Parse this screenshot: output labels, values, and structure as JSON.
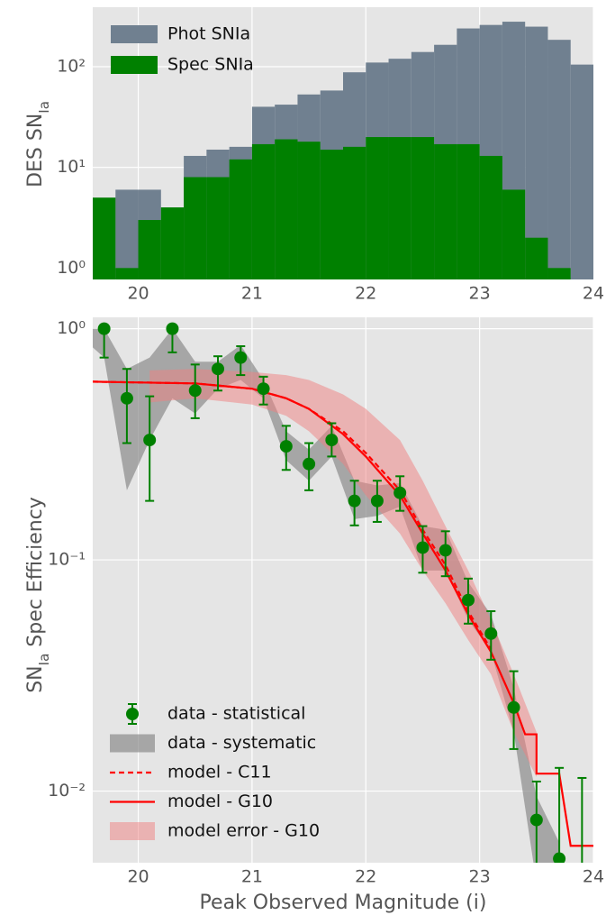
{
  "chart_data": [
    {
      "type": "histogram",
      "log_y": true,
      "grid": true,
      "legend": "upper left",
      "ylabel": {
        "main": "DES SN",
        "sub": "Ia"
      },
      "bins": [
        19.6,
        19.8,
        20.0,
        20.2,
        20.4,
        20.6,
        20.8,
        21.0,
        21.2,
        21.4,
        21.6,
        21.8,
        22.0,
        22.2,
        22.4,
        22.6,
        22.8,
        23.0,
        23.2,
        23.4,
        23.6,
        23.8,
        24.0
      ],
      "series": [
        {
          "name": "Phot SNIa",
          "color": "#708090",
          "values": [
            5,
            6,
            6,
            4,
            13,
            15,
            16,
            40,
            42,
            53,
            58,
            88,
            110,
            120,
            140,
            165,
            240,
            260,
            280,
            250,
            185,
            105
          ]
        },
        {
          "name": "Spec SNIa",
          "color": "#008000",
          "values": [
            5,
            1,
            3,
            4,
            8,
            8,
            12,
            17,
            19,
            18,
            15,
            16,
            20,
            20,
            20,
            17,
            17,
            13,
            6,
            2,
            1,
            null
          ]
        }
      ],
      "xlim": [
        19.6,
        24
      ],
      "xticks": [
        20,
        21,
        22,
        23,
        24
      ],
      "ylim": [
        0.77,
        390
      ],
      "yticks": [
        {
          "value": 1,
          "label": "10⁰"
        },
        {
          "value": 10,
          "label": "10¹"
        },
        {
          "value": 100,
          "label": "10²"
        }
      ]
    },
    {
      "type": "composite",
      "log_y": true,
      "grid": true,
      "legend": "lower left",
      "xlabel": "Peak Observed Magnitude (i)",
      "ylabel": {
        "pre": "SN",
        "sub": "Ia",
        "post": " Spec Efficiency"
      },
      "xlim": [
        19.6,
        24
      ],
      "xticks": [
        20,
        21,
        22,
        23,
        24
      ],
      "ylim": [
        0.0049,
        1.12
      ],
      "yticks": [
        {
          "value": 0.01,
          "label": "10⁻²"
        },
        {
          "value": 0.1,
          "label": "10⁻¹"
        },
        {
          "value": 1,
          "label": "10⁰"
        }
      ],
      "series": [
        {
          "name": "data - statistical",
          "type": "errorbar",
          "color": "#008000",
          "x": [
            19.7,
            19.9,
            20.1,
            20.3,
            20.5,
            20.7,
            20.9,
            21.1,
            21.3,
            21.5,
            21.7,
            21.9,
            22.1,
            22.3,
            22.5,
            22.7,
            22.9,
            23.1,
            23.3,
            23.5,
            23.7,
            23.9
          ],
          "values": [
            1.0,
            0.5,
            0.33,
            1.0,
            0.54,
            0.67,
            0.75,
            0.55,
            0.31,
            0.26,
            0.33,
            0.18,
            0.18,
            0.195,
            0.113,
            0.11,
            0.067,
            0.048,
            0.023,
            0.0075,
            0.0051,
            null
          ],
          "lower": [
            0.75,
            0.32,
            0.18,
            0.79,
            0.41,
            0.54,
            0.63,
            0.47,
            0.245,
            0.2,
            0.28,
            0.141,
            0.146,
            0.163,
            0.088,
            0.085,
            0.053,
            0.037,
            0.0152,
            0.004,
            0.004,
            0.004
          ],
          "upper": [
            1.0,
            0.67,
            0.51,
            1.0,
            0.7,
            0.76,
            0.84,
            0.62,
            0.38,
            0.32,
            0.39,
            0.22,
            0.22,
            0.23,
            0.14,
            0.133,
            0.083,
            0.06,
            0.033,
            0.011,
            0.0126,
            0.0114
          ]
        },
        {
          "name": "data - systematic",
          "type": "band",
          "color": "#8c8c8c",
          "opacity": 0.7,
          "x": [
            19.6,
            19.7,
            19.9,
            20.1,
            20.3,
            20.5,
            20.7,
            20.9,
            21.1,
            21.3,
            21.5,
            21.7,
            21.9,
            22.1,
            22.3,
            22.5,
            22.7,
            22.9,
            23.1,
            23.3,
            23.5,
            23.7
          ],
          "lower": [
            0.83,
            0.75,
            0.2,
            0.33,
            0.5,
            0.43,
            0.55,
            0.6,
            0.5,
            0.27,
            0.22,
            0.28,
            0.15,
            0.155,
            0.17,
            0.09,
            0.09,
            0.055,
            0.04,
            0.018,
            0.004,
            0.004
          ],
          "upper": [
            1.0,
            1.0,
            0.67,
            0.75,
            1.0,
            0.72,
            0.72,
            0.85,
            0.6,
            0.36,
            0.3,
            0.38,
            0.22,
            0.21,
            0.215,
            0.14,
            0.135,
            0.08,
            0.058,
            0.028,
            0.0095,
            0.006
          ]
        },
        {
          "name": "model - C11",
          "type": "line",
          "dash": true,
          "color": "#ff0000",
          "x": [
            19.6,
            20.5,
            21.0,
            21.3,
            21.5,
            21.8,
            22.0,
            22.3,
            22.5,
            22.7,
            22.9,
            23.1
          ],
          "values": [
            0.59,
            0.58,
            0.55,
            0.5,
            0.45,
            0.36,
            0.29,
            0.2,
            0.135,
            0.095,
            0.06,
            0.041
          ]
        },
        {
          "name": "model - G10",
          "type": "line",
          "color": "#ff0000",
          "x": [
            19.6,
            20.5,
            21.0,
            21.3,
            21.5,
            21.8,
            22.0,
            22.3,
            22.5,
            22.7,
            22.9,
            23.1,
            23.3,
            23.4,
            23.5,
            23.5,
            23.7,
            23.8,
            24.0
          ],
          "values": [
            0.59,
            0.58,
            0.55,
            0.5,
            0.45,
            0.35,
            0.28,
            0.19,
            0.13,
            0.09,
            0.058,
            0.04,
            0.024,
            0.0176,
            0.0176,
            0.0119,
            0.0119,
            0.0058,
            0.0058
          ]
        },
        {
          "name": "model error - G10",
          "type": "band",
          "color": "#f08080",
          "opacity": 0.5,
          "x": [
            20.1,
            20.5,
            21.0,
            21.3,
            21.5,
            21.8,
            22.0,
            22.3,
            22.5,
            22.7,
            22.9,
            23.1,
            23.3,
            23.5
          ],
          "lower": [
            0.48,
            0.5,
            0.47,
            0.42,
            0.36,
            0.26,
            0.19,
            0.13,
            0.09,
            0.065,
            0.045,
            0.032,
            0.018,
            0.0115
          ],
          "upper": [
            0.66,
            0.67,
            0.65,
            0.63,
            0.6,
            0.52,
            0.45,
            0.33,
            0.22,
            0.14,
            0.09,
            0.055,
            0.032,
            0.018
          ]
        }
      ]
    }
  ]
}
